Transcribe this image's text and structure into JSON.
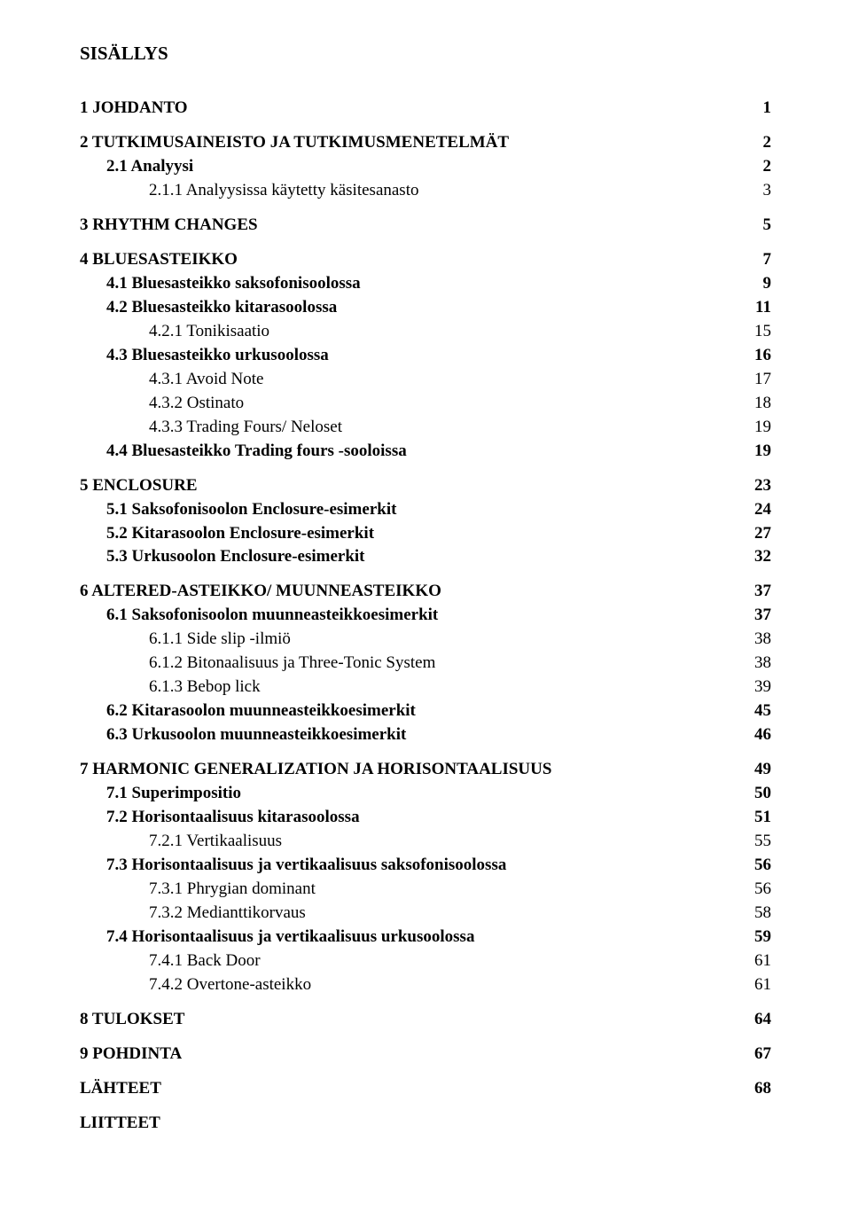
{
  "doc_title": "SISÄLLYS",
  "toc": [
    {
      "level": 0,
      "label": "1 JOHDANTO",
      "page": "1",
      "gap": false
    },
    {
      "level": 0,
      "label": "2 TUTKIMUSAINEISTO JA TUTKIMUSMENETELMÄT",
      "page": "2",
      "gap": true
    },
    {
      "level": 1,
      "label": "2.1 Analyysi",
      "page": "2",
      "gap": false
    },
    {
      "level": 2,
      "label": "2.1.1 Analyysissa käytetty käsitesanasto",
      "page": "3",
      "gap": false
    },
    {
      "level": 0,
      "label": "3 RHYTHM CHANGES",
      "page": "5",
      "gap": true
    },
    {
      "level": 0,
      "label": "4 BLUESASTEIKKO",
      "page": "7",
      "gap": true
    },
    {
      "level": 1,
      "label": "4.1 Bluesasteikko saksofonisoolossa",
      "page": "9",
      "gap": false
    },
    {
      "level": 1,
      "label": "4.2 Bluesasteikko kitarasoolossa",
      "page": "11",
      "gap": false
    },
    {
      "level": 2,
      "label": "4.2.1 Tonikisaatio",
      "page": "15",
      "gap": false
    },
    {
      "level": 1,
      "label": "4.3 Bluesasteikko urkusoolossa",
      "page": "16",
      "gap": false
    },
    {
      "level": 2,
      "label": "4.3.1 Avoid Note",
      "page": "17",
      "gap": false
    },
    {
      "level": 2,
      "label": "4.3.2 Ostinato",
      "page": "18",
      "gap": false
    },
    {
      "level": 2,
      "label": "4.3.3 Trading Fours/ Neloset",
      "page": "19",
      "gap": false
    },
    {
      "level": 1,
      "label": "4.4 Bluesasteikko Trading fours -sooloissa",
      "page": "19",
      "gap": false
    },
    {
      "level": 0,
      "label": "5 ENCLOSURE",
      "page": "23",
      "gap": true
    },
    {
      "level": 1,
      "label": "5.1 Saksofonisoolon Enclosure-esimerkit",
      "page": "24",
      "gap": false
    },
    {
      "level": 1,
      "label": "5.2 Kitarasoolon Enclosure-esimerkit",
      "page": "27",
      "gap": false
    },
    {
      "level": 1,
      "label": "5.3 Urkusoolon Enclosure-esimerkit",
      "page": "32",
      "gap": false
    },
    {
      "level": 0,
      "label": "6 ALTERED-ASTEIKKO/ MUUNNEASTEIKKO",
      "page": "37",
      "gap": true
    },
    {
      "level": 1,
      "label": "6.1 Saksofonisoolon muunneasteikkoesimerkit",
      "page": "37",
      "gap": false
    },
    {
      "level": 2,
      "label": "6.1.1 Side slip -ilmiö",
      "page": "38",
      "gap": false
    },
    {
      "level": 2,
      "label": "6.1.2 Bitonaalisuus ja Three-Tonic System",
      "page": "38",
      "gap": false
    },
    {
      "level": 2,
      "label": "6.1.3 Bebop lick",
      "page": "39",
      "gap": false
    },
    {
      "level": 1,
      "label": "6.2 Kitarasoolon muunneasteikkoesimerkit",
      "page": "45",
      "gap": false
    },
    {
      "level": 1,
      "label": "6.3 Urkusoolon muunneasteikkoesimerkit",
      "page": "46",
      "gap": false
    },
    {
      "level": 0,
      "label": "7 HARMONIC GENERALIZATION JA HORISONTAALISUUS",
      "page": "49",
      "gap": true
    },
    {
      "level": 1,
      "label": "7.1 Superimpositio",
      "page": "50",
      "gap": false
    },
    {
      "level": 1,
      "label": "7.2 Horisontaalisuus kitarasoolossa",
      "page": "51",
      "gap": false
    },
    {
      "level": 2,
      "label": "7.2.1 Vertikaalisuus",
      "page": "55",
      "gap": false
    },
    {
      "level": 1,
      "label": "7.3 Horisontaalisuus ja vertikaalisuus saksofonisoolossa",
      "page": "56",
      "gap": false
    },
    {
      "level": 2,
      "label": "7.3.1 Phrygian dominant",
      "page": "56",
      "gap": false
    },
    {
      "level": 2,
      "label": "7.3.2 Medianttikorvaus",
      "page": "58",
      "gap": false
    },
    {
      "level": 1,
      "label": "7.4 Horisontaalisuus ja vertikaalisuus urkusoolossa",
      "page": "59",
      "gap": false
    },
    {
      "level": 2,
      "label": "7.4.1 Back Door",
      "page": "61",
      "gap": false
    },
    {
      "level": 2,
      "label": "7.4.2 Overtone-asteikko",
      "page": "61",
      "gap": false
    },
    {
      "level": 0,
      "label": "8 TULOKSET",
      "page": "64",
      "gap": true
    },
    {
      "level": 0,
      "label": "9 POHDINTA",
      "page": "67",
      "gap": true
    },
    {
      "level": 0,
      "label": "LÄHTEET",
      "page": "68",
      "gap": true
    },
    {
      "level": 0,
      "label": "LIITTEET",
      "page": "",
      "gap": true
    }
  ]
}
